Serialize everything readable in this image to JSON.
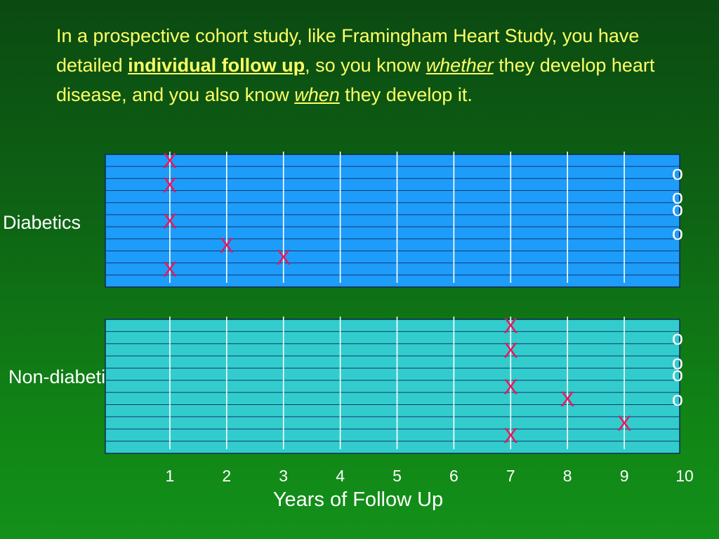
{
  "intro": {
    "part1": "In a prospective cohort study, like Framingham Heart Study, you have detailed ",
    "emphasis1": "individual follow up",
    "part2": ", so you know ",
    "emphasis2": "whether",
    "part3": " they develop heart disease, and you also know ",
    "emphasis3": "when",
    "part4": " they develop it."
  },
  "colors": {
    "diabetics_panel": "#1e9cf9",
    "non_diabetics_panel": "#33cccc",
    "event_marker": "#e8175d",
    "text_highlight": "#ffff66"
  },
  "chart_data": {
    "type": "event-timeline",
    "xlabel": "Years of Follow Up",
    "x_ticks": [
      1,
      2,
      3,
      4,
      5,
      6,
      7,
      8,
      9,
      10
    ],
    "xlim": [
      0,
      10
    ],
    "event_marker_label": "X",
    "censor_marker_label": "o",
    "groups": [
      {
        "name": "Diabetics",
        "rows": 11,
        "events": [
          {
            "year": 1,
            "row": 1
          },
          {
            "year": 1,
            "row": 3
          },
          {
            "year": 1,
            "row": 6
          },
          {
            "year": 2,
            "row": 8
          },
          {
            "year": 3,
            "row": 9
          },
          {
            "year": 1,
            "row": 10
          }
        ],
        "censored": [
          {
            "year": 10,
            "row": 2
          },
          {
            "year": 10,
            "row": 4
          },
          {
            "year": 10,
            "row": 5
          },
          {
            "year": 10,
            "row": 7
          }
        ]
      },
      {
        "name": "Non-diabetics",
        "rows": 11,
        "events": [
          {
            "year": 7,
            "row": 1
          },
          {
            "year": 7,
            "row": 3
          },
          {
            "year": 7,
            "row": 6
          },
          {
            "year": 8,
            "row": 7
          },
          {
            "year": 9,
            "row": 9
          },
          {
            "year": 7,
            "row": 10
          }
        ],
        "censored": [
          {
            "year": 10,
            "row": 2
          },
          {
            "year": 10,
            "row": 4
          },
          {
            "year": 10,
            "row": 5
          },
          {
            "year": 10,
            "row": 7
          }
        ]
      }
    ]
  }
}
